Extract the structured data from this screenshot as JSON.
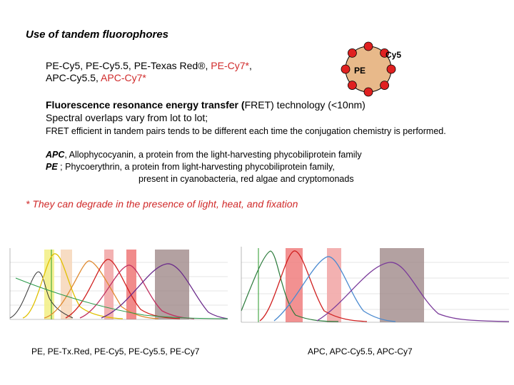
{
  "title": "Use of tandem fluorophores",
  "tandems": {
    "line1_black": "PE-Cy5, PE-Cy5.5, PE-Texas Red®, ",
    "line1_red": "PE-Cy7*",
    "line1_end": ",",
    "line2_black": "APC-Cy5.5, ",
    "line2_red": "APC-Cy7*"
  },
  "diagram": {
    "center_label": "PE",
    "dye_label": "Cy5",
    "colors": {
      "center": "#e8b98a",
      "dye": "#e02020"
    }
  },
  "fret": {
    "line1_bold": "Fluorescence resonance energy transfer (",
    "line1_abbr": "FRET",
    "line1_rest": ") technology (<10nm)",
    "line2": "Spectral overlaps vary from lot to lot;",
    "line3": "FRET efficient in tandem pairs tends to be different each time the conjugation chemistry is performed."
  },
  "definitions": {
    "apc_term": "APC",
    "apc_text": ", Allophycocyanin, a protein from the light-harvesting phycobiliprotein family",
    "pe_term": "PE",
    "pe_text": "  ; Phycoerythrin, a protein from light-harvesting phycobiliprotein family,",
    "pe_text2": "present in cyanobacteria, red algae and cryptomonads"
  },
  "warning": "* They can degrade in the presence of light, heat, and fixation",
  "captions": {
    "left": "PE, PE-Tx.Red, PE-Cy5, PE-Cy5.5, PE-Cy7",
    "right": "APC, APC-Cy5.5, APC-Cy7"
  }
}
